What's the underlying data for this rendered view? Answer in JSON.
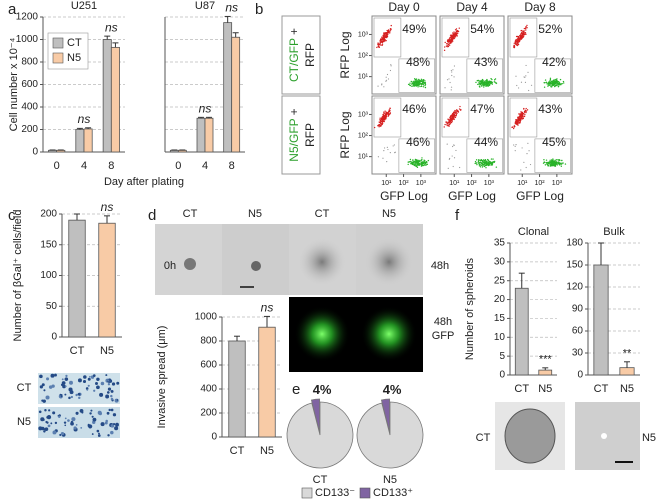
{
  "panel_labels": [
    "a",
    "b",
    "c",
    "d",
    "e",
    "f"
  ],
  "chart_data": [
    {
      "type": "bar",
      "title": "U251",
      "ylabel": "Cell number x 10⁻⁴",
      "xlabel": "Day after plating",
      "categories": [
        "0",
        "4",
        "8"
      ],
      "series": [
        {
          "name": "CT",
          "color": "#bfbfbf",
          "values": [
            15,
            200,
            1000
          ],
          "errors": [
            3,
            10,
            30
          ]
        },
        {
          "name": "N5",
          "color": "#f8cba6",
          "values": [
            15,
            205,
            930
          ],
          "errors": [
            3,
            10,
            40
          ]
        }
      ],
      "annotations": [
        null,
        "ns",
        "ns"
      ],
      "ylim": [
        0,
        1200
      ],
      "yticks": [
        0,
        200,
        400,
        600,
        800,
        1000,
        1200
      ],
      "grid": true,
      "legend": "upper left"
    },
    {
      "type": "bar",
      "title": "U87",
      "categories": [
        "0",
        "4",
        "8"
      ],
      "series": [
        {
          "color": "#bfbfbf",
          "values": [
            15,
            300,
            1150
          ],
          "errors": [
            3,
            8,
            55
          ]
        },
        {
          "color": "#f8cba6",
          "values": [
            15,
            300,
            1020
          ],
          "errors": [
            3,
            8,
            40
          ]
        }
      ],
      "annotations": [
        null,
        "ns",
        "ns"
      ],
      "ylim": [
        0,
        1200
      ],
      "grid": true
    },
    {
      "type": "bar",
      "ylabel": "Number of βGal⁺ cells/field",
      "categories": [
        "CT",
        "N5"
      ],
      "values": [
        190,
        185
      ],
      "errors": [
        10,
        12
      ],
      "colors": [
        "#bfbfbf",
        "#f8cba6"
      ],
      "annotations": [
        null,
        "ns"
      ],
      "ylim": [
        0,
        200
      ],
      "yticks": [
        0,
        50,
        100,
        150,
        200
      ],
      "grid": true
    },
    {
      "type": "bar",
      "ylabel": "Invasive spread (μm)",
      "categories": [
        "CT",
        "N5"
      ],
      "values": [
        800,
        915
      ],
      "errors": [
        40,
        90
      ],
      "colors": [
        "#bfbfbf",
        "#f8cba6"
      ],
      "annotations": [
        null,
        "ns"
      ],
      "ylim": [
        0,
        1000
      ],
      "yticks": [
        0,
        200,
        400,
        600,
        800,
        1000
      ],
      "grid": true
    },
    {
      "type": "pie",
      "title": "CT",
      "categories": [
        "CD133⁻",
        "CD133⁺"
      ],
      "values": [
        96,
        4
      ],
      "value_labels": [
        null,
        "4%"
      ],
      "colors": [
        "#d9d9d9",
        "#8064a2"
      ]
    },
    {
      "type": "pie",
      "title": "N5",
      "values": [
        96,
        4
      ],
      "value_labels": [
        null,
        "4%"
      ],
      "colors": [
        "#d9d9d9",
        "#8064a2"
      ]
    },
    {
      "type": "bar",
      "title": "Clonal",
      "ylabel": "Number of spheroids",
      "categories": [
        "CT",
        "N5"
      ],
      "values": [
        23,
        1.3
      ],
      "errors": [
        4,
        0.6
      ],
      "colors": [
        "#bfbfbf",
        "#f8cba6"
      ],
      "annotations": [
        null,
        "***"
      ],
      "ylim": [
        0,
        35
      ],
      "yticks": [
        0,
        5,
        10,
        15,
        20,
        25,
        30,
        35
      ],
      "grid": true
    },
    {
      "type": "bar",
      "title": "Bulk",
      "categories": [
        "CT",
        "N5"
      ],
      "values": [
        150,
        10
      ],
      "errors": [
        30,
        8
      ],
      "colors": [
        "#bfbfbf",
        "#f8cba6"
      ],
      "annotations": [
        null,
        "**"
      ],
      "ylim": [
        0,
        180
      ],
      "yticks": [
        0,
        30,
        60,
        90,
        120,
        150,
        180
      ],
      "grid": true
    }
  ],
  "flow": {
    "columns": [
      "Day 0",
      "Day 4",
      "Day 8"
    ],
    "rows": [
      [
        "CT/GFP",
        "+",
        "RFP"
      ],
      [
        "N5/GFP",
        "+",
        "RFP"
      ]
    ],
    "ylabel": "RFP Log",
    "xlabel": "GFP Log",
    "lim": [
      1.5,
      7500
    ],
    "ticks": [
      {
        "value": 10,
        "label": "10¹"
      },
      {
        "value": 100,
        "label": "10²"
      },
      {
        "value": 1000,
        "label": "10³"
      }
    ],
    "rfp_labels": [
      [
        "49%",
        "54%",
        "52%"
      ],
      [
        "46%",
        "47%",
        "43%"
      ]
    ],
    "gfp_labels": [
      [
        "48%",
        "43%",
        "42%"
      ],
      [
        "46%",
        "44%",
        "45%"
      ]
    ]
  },
  "stain_labels": [
    "CT",
    "N5"
  ],
  "invasion": {
    "columns": [
      "CT",
      "N5",
      "CT",
      "N5"
    ],
    "time_labels": [
      "0h",
      "48h"
    ],
    "gfp_label": [
      "48h",
      "GFP"
    ]
  },
  "spheroid_labels": [
    "CT",
    "N5"
  ]
}
